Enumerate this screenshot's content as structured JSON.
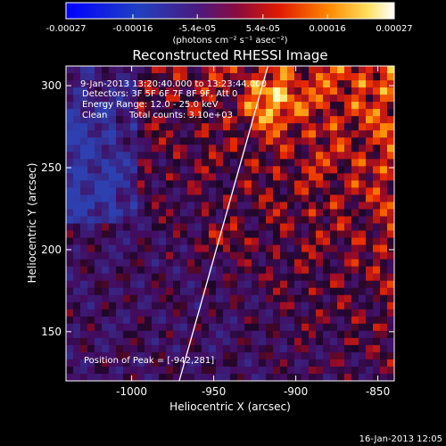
{
  "chart_data": {
    "type": "heatmap",
    "title": "Reconstructed RHESSI Image",
    "xlabel": "Heliocentric X (arcsec)",
    "ylabel": "Heliocentric Y (arcsec)",
    "x_ticks": [
      "-1000",
      "-950",
      "-900",
      "-850"
    ],
    "x_tick_values": [
      -1000,
      -950,
      -900,
      -850
    ],
    "y_ticks": [
      "150",
      "200",
      "250",
      "300"
    ],
    "y_tick_values": [
      150,
      200,
      250,
      300
    ],
    "xlim": [
      -1040,
      -840
    ],
    "ylim": [
      120,
      312
    ],
    "colorbar": {
      "ticks": [
        "-0.00027",
        "-0.00016",
        "-5.4e-05",
        "5.4e-05",
        "0.00016",
        "0.00027"
      ],
      "tick_values": [
        -0.00027,
        -0.00016,
        -5.4e-05,
        5.4e-05,
        0.00016,
        0.00027
      ],
      "range": [
        -0.00027,
        0.00027
      ],
      "units_label": "(photons cm⁻² s⁻¹ asec⁻²)"
    },
    "annotations": [
      "9-Jan-2013 13:20:40.000 to 13:23:44.000",
      "Detectors: 3F 5F 6F 7F 8F 9F, Att 0",
      "Energy Range: 12.0 - 25.0 keV",
      "Clean",
      "Total counts: 3.10e+03"
    ],
    "peak_label": "Position of Peak = [-942,281]",
    "peak_position": [
      -942,
      281
    ],
    "limb_line": {
      "x1": -971,
      "y1": 120,
      "x2": -917,
      "y2": 312
    },
    "colors": {
      "bright": "#ffff99",
      "orange": "#ff8800",
      "red": "#cc1a00",
      "purple": "#440a6e",
      "blue": "#2e40b0"
    }
  },
  "footer": {
    "timestamp": "16-Jan-2013 12:05"
  }
}
